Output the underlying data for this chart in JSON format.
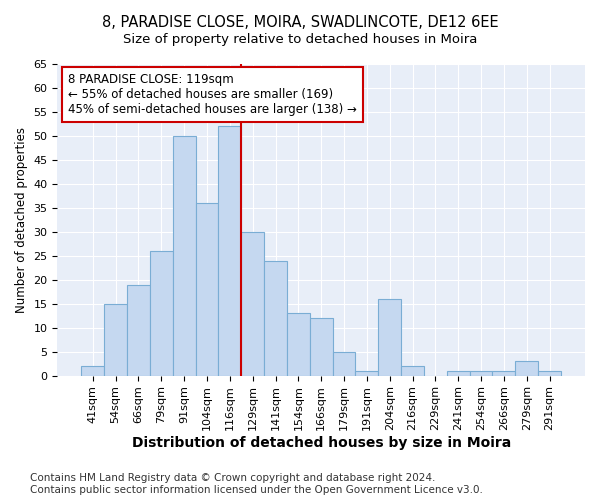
{
  "title1": "8, PARADISE CLOSE, MOIRA, SWADLINCOTE, DE12 6EE",
  "title2": "Size of property relative to detached houses in Moira",
  "xlabel": "Distribution of detached houses by size in Moira",
  "ylabel": "Number of detached properties",
  "bar_labels": [
    "41sqm",
    "54sqm",
    "66sqm",
    "79sqm",
    "91sqm",
    "104sqm",
    "116sqm",
    "129sqm",
    "141sqm",
    "154sqm",
    "166sqm",
    "179sqm",
    "191sqm",
    "204sqm",
    "216sqm",
    "229sqm",
    "241sqm",
    "254sqm",
    "266sqm",
    "279sqm",
    "291sqm"
  ],
  "bar_values": [
    2,
    15,
    19,
    26,
    50,
    36,
    52,
    30,
    24,
    13,
    12,
    5,
    1,
    16,
    2,
    0,
    1,
    1,
    1,
    3,
    1
  ],
  "bar_color": "#c5d8f0",
  "bar_edgecolor": "#7aadd4",
  "vline_x": 6.5,
  "vline_color": "#cc0000",
  "annotation_text": "8 PARADISE CLOSE: 119sqm\n← 55% of detached houses are smaller (169)\n45% of semi-detached houses are larger (138) →",
  "annotation_bbox_edgecolor": "#cc0000",
  "annotation_bbox_facecolor": "#ffffff",
  "footnote": "Contains HM Land Registry data © Crown copyright and database right 2024.\nContains public sector information licensed under the Open Government Licence v3.0.",
  "ylim": [
    0,
    65
  ],
  "yticks": [
    0,
    5,
    10,
    15,
    20,
    25,
    30,
    35,
    40,
    45,
    50,
    55,
    60,
    65
  ],
  "bg_color": "#e8eef8",
  "grid_color": "#ffffff",
  "title1_fontsize": 10.5,
  "title2_fontsize": 9.5,
  "xlabel_fontsize": 10,
  "ylabel_fontsize": 8.5,
  "tick_fontsize": 8,
  "annot_fontsize": 8.5,
  "footnote_fontsize": 7.5
}
